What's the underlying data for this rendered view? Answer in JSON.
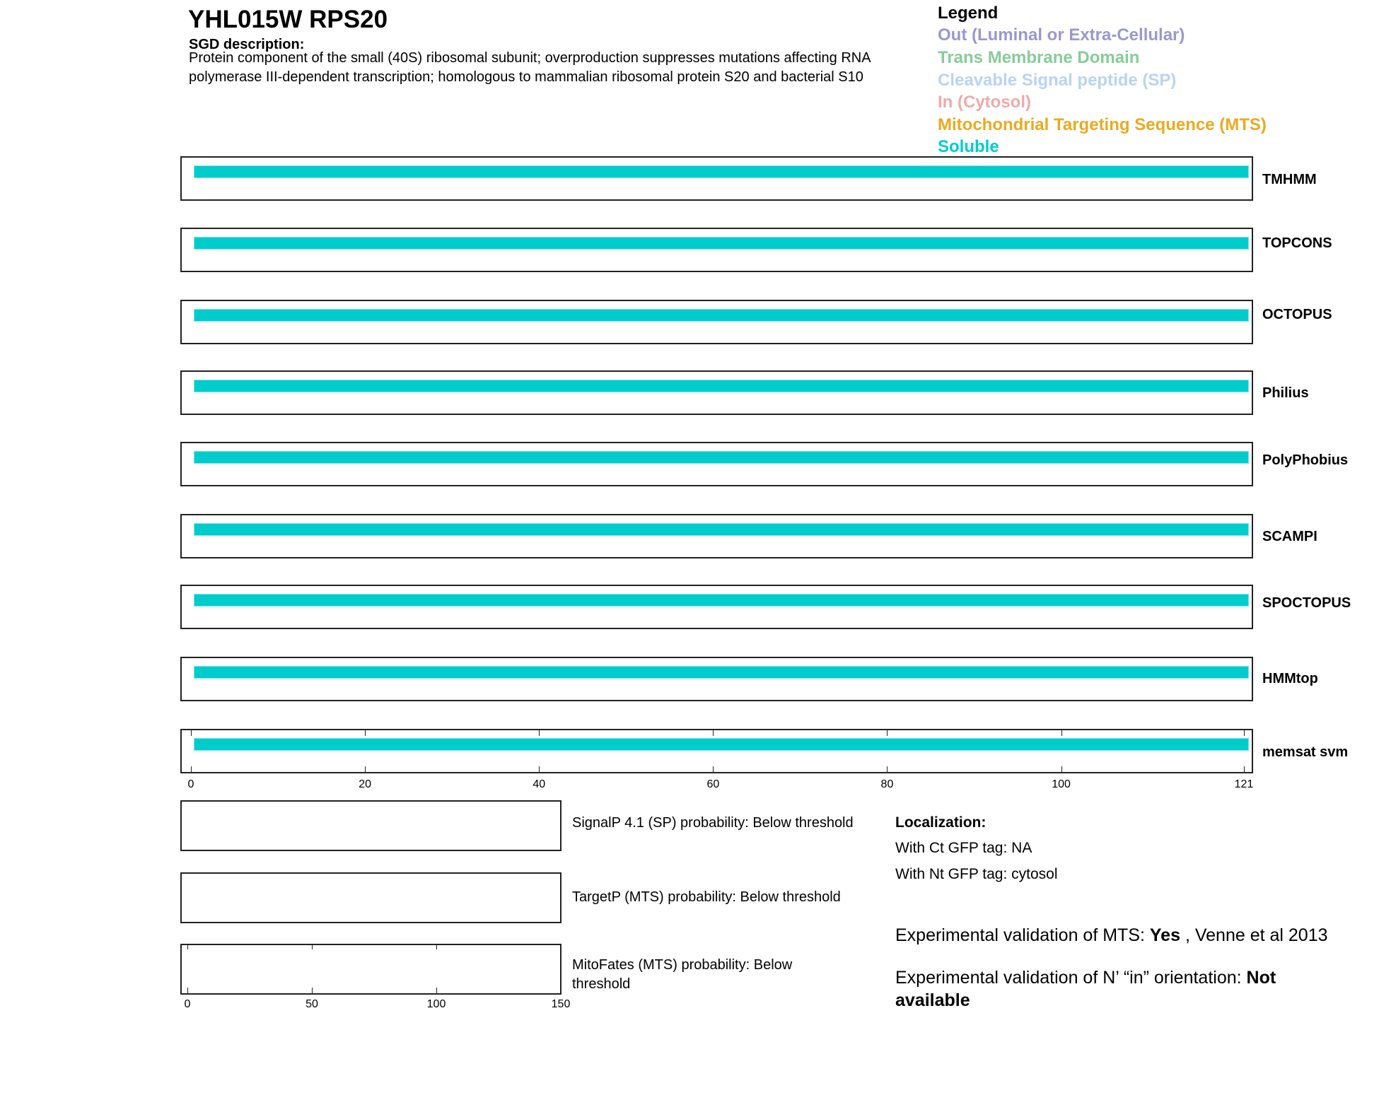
{
  "header": {
    "title": "YHL015W  RPS20",
    "sgd_heading": "SGD description:",
    "description_lines": [
      "Protein component of the small (40S) ribosomal subunit; overproduction suppresses mutations affecting RNA",
      "polymerase III-dependent transcription; homologous to mammalian ribosomal protein S20 and bacterial S10"
    ]
  },
  "legend": {
    "title": "Legend",
    "items": [
      {
        "label": "Out (Luminal or Extra-Cellular)",
        "color": "#9999cc"
      },
      {
        "label": "Trans Membrane Domain",
        "color": "#88cc99"
      },
      {
        "label": "Cleavable Signal peptide (SP)",
        "color": "#b8d4f2"
      },
      {
        "label": "In (Cytosol)",
        "color": "#eeaaaa"
      },
      {
        "label": "Mitochondrial Targeting Sequence (MTS)",
        "color": "#eaaa22"
      },
      {
        "label": "Soluble",
        "color": "#00cccc"
      }
    ]
  },
  "tracks": [
    {
      "name": "TMHMM",
      "segments": [
        {
          "type": "Soluble",
          "start": 1,
          "end": 121
        }
      ]
    },
    {
      "name": "TOPCONS",
      "segments": [
        {
          "type": "Soluble",
          "start": 1,
          "end": 121
        }
      ]
    },
    {
      "name": "OCTOPUS",
      "segments": [
        {
          "type": "Soluble",
          "start": 1,
          "end": 121
        }
      ]
    },
    {
      "name": "Philius",
      "segments": [
        {
          "type": "Soluble",
          "start": 1,
          "end": 121
        }
      ]
    },
    {
      "name": "PolyPhobius",
      "segments": [
        {
          "type": "Soluble",
          "start": 1,
          "end": 121
        }
      ]
    },
    {
      "name": "SCAMPI",
      "segments": [
        {
          "type": "Soluble",
          "start": 1,
          "end": 121
        }
      ]
    },
    {
      "name": "SPOCTOPUS",
      "segments": [
        {
          "type": "Soluble",
          "start": 1,
          "end": 121
        }
      ]
    },
    {
      "name": "HMMtop",
      "segments": [
        {
          "type": "Soluble",
          "start": 1,
          "end": 121
        }
      ]
    },
    {
      "name": "memsat svm",
      "segments": [
        {
          "type": "Soluble",
          "start": 1,
          "end": 121
        }
      ]
    }
  ],
  "track_axis": {
    "range": [
      0,
      121
    ],
    "ticks": [
      "0",
      "20",
      "40",
      "60",
      "80",
      "100",
      "121"
    ]
  },
  "probabilities": {
    "signalp": "SignalP 4.1 (SP) probability: Below threshold",
    "targetp": "TargetP (MTS) probability: Below threshold",
    "mitofates_line1": "MitoFates (MTS) probability: Below",
    "mitofates_line2": "threshold",
    "axis_ticks": [
      "0",
      "50",
      "100",
      "150"
    ]
  },
  "localization": {
    "heading": "Localization:",
    "ct": "With Ct GFP tag: NA",
    "nt": "With Nt GFP tag: cytosol"
  },
  "validation": {
    "mts_prefix": "Experimental validation of MTS: ",
    "mts_value": "Yes",
    "mts_suffix": " , Venne et al 2013",
    "orientation_prefix": "Experimental validation of N’ “in” orientation: ",
    "orientation_value_1": "Not",
    "orientation_value_2": "available"
  }
}
